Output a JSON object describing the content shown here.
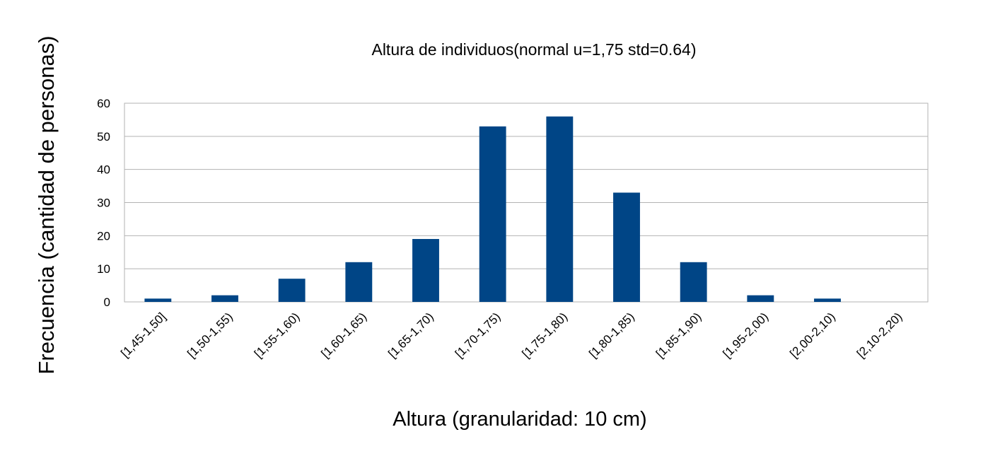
{
  "chart_data": {
    "type": "bar",
    "title": "Altura de individuos(normal u=1,75 std=0.64)",
    "xlabel": "Altura (granularidad: 10 cm)",
    "ylabel": "Frecuencia (cantidad de personas)",
    "ylim": [
      0,
      60
    ],
    "yticks": [
      0,
      10,
      20,
      30,
      40,
      50,
      60
    ],
    "grid": true,
    "legend": "none",
    "bar_color": "#004586",
    "categories": [
      "[1,45-1,50]",
      "[1,50-1,55)",
      "[1,55-1,60)",
      "[1,60-1,65)",
      "[1,65-1,70)",
      "[1,70-1,75)",
      "[1,75-1,80)",
      "[1,80-1,85)",
      "[1,85-1,90)",
      "[1,95-2,00)",
      "[2,00-2,10)",
      "[2,10-2,20)"
    ],
    "values": [
      1,
      2,
      7,
      12,
      19,
      53,
      56,
      33,
      12,
      2,
      1,
      0
    ]
  }
}
